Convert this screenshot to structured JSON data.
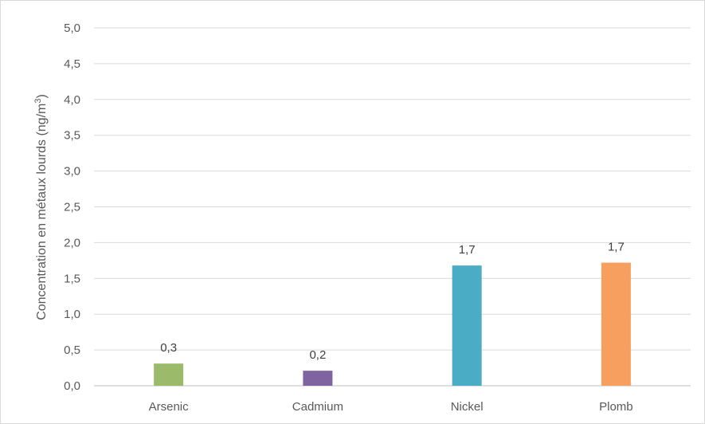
{
  "chart_data": {
    "type": "bar",
    "title": "",
    "xlabel": "",
    "ylabel": "Concentration en métaux lourds (ng/m³)",
    "ylabel_parts": {
      "pre": "Concentration en métaux lourds (ng/m",
      "sup": "3",
      "post": ")"
    },
    "categories": [
      "Arsenic",
      "Cadmium",
      "Nickel",
      "Plomb"
    ],
    "values": [
      0.31,
      0.21,
      1.68,
      1.72
    ],
    "data_labels": [
      "0,3",
      "0,2",
      "1,7",
      "1,7"
    ],
    "colors": [
      "#9BBB6B",
      "#8064A2",
      "#4BACC6",
      "#F79F5E"
    ],
    "ylim": [
      0,
      5
    ],
    "yticks": [
      0,
      0.5,
      1,
      1.5,
      2,
      2.5,
      3,
      3.5,
      4,
      4.5,
      5
    ],
    "ytick_labels": [
      "0,0",
      "0,5",
      "1,0",
      "1,5",
      "2,0",
      "2,5",
      "3,0",
      "3,5",
      "4,0",
      "4,5",
      "5,0"
    ],
    "grid": true,
    "legend": "none"
  }
}
